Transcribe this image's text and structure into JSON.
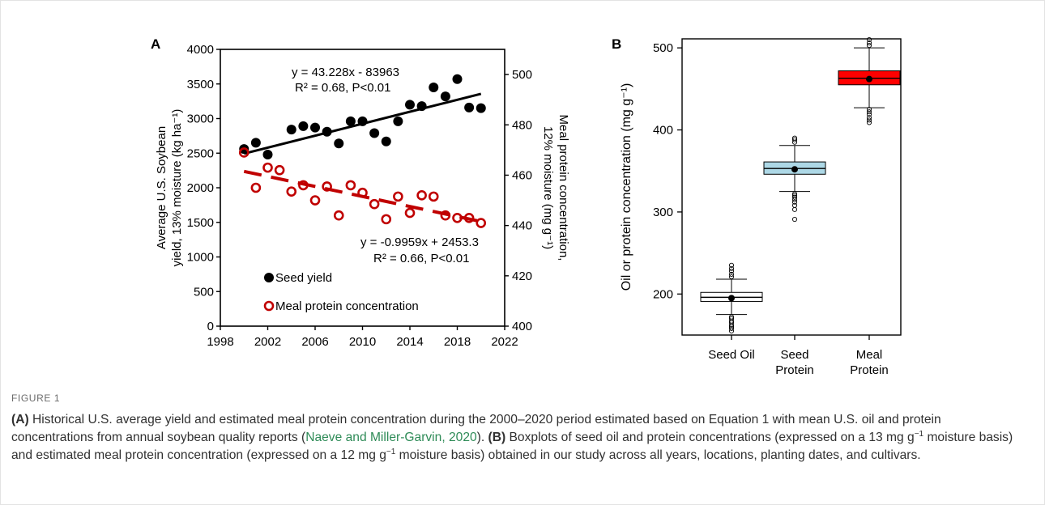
{
  "chart_data": [
    {
      "type": "scatter",
      "panel_label": "A",
      "x": [
        2000,
        2001,
        2002,
        2003,
        2004,
        2005,
        2006,
        2007,
        2008,
        2009,
        2010,
        2011,
        2012,
        2013,
        2014,
        2015,
        2016,
        2017,
        2018,
        2019,
        2020
      ],
      "xlim": [
        1998,
        2022
      ],
      "xticks": [
        "1998",
        "2002",
        "2006",
        "2010",
        "2014",
        "2018",
        "2022"
      ],
      "ylim_left": [
        0,
        4000
      ],
      "yticks_left": [
        "0",
        "500",
        "1000",
        "1500",
        "2000",
        "2500",
        "3000",
        "3500",
        "4000"
      ],
      "ylim_right": [
        400,
        510
      ],
      "yticks_right": [
        "400",
        "420",
        "440",
        "460",
        "480",
        "500"
      ],
      "ylabel_left": [
        "Average U.S. Soybean",
        "yield, 13% moisture (kg ha⁻¹)"
      ],
      "ylabel_right": [
        "Meal protein concentration,",
        "12% moisture (mg g⁻¹)"
      ],
      "series": [
        {
          "name": "Seed yield",
          "axis": "left",
          "marker": "filled-circle",
          "color": "#000000",
          "values": [
            2560,
            2650,
            2480,
            null,
            2840,
            2890,
            2870,
            2810,
            2640,
            2960,
            2960,
            2790,
            2670,
            2960,
            3200,
            3180,
            3450,
            3320,
            3570,
            3160,
            3150
          ],
          "trend": {
            "slope": 43.228,
            "intercept": -83963
          },
          "equation": "y = 43.228x - 83963",
          "stats": "R² = 0.68, P<0.01"
        },
        {
          "name": "Meal protein concentration",
          "axis": "right",
          "marker": "open-circle",
          "color": "#c00000",
          "values": [
            469,
            455,
            463,
            462,
            453.5,
            456,
            450,
            455.5,
            444,
            456,
            453,
            448.5,
            442.5,
            451.5,
            445,
            452,
            451.5,
            444,
            443,
            443,
            441
          ],
          "trend": {
            "slope": -0.9959,
            "intercept": 2453.3
          },
          "equation": "y = -0.9959x + 2453.3",
          "stats": "R² = 0.66, P<0.01"
        }
      ]
    },
    {
      "type": "box",
      "panel_label": "B",
      "ylabel": "Oil or protein concentration (mg g⁻¹)",
      "ylim": [
        150,
        510
      ],
      "yticks": [
        "200",
        "300",
        "400",
        "500"
      ],
      "categories": [
        [
          "Seed Oil"
        ],
        [
          "Seed",
          "Protein"
        ],
        [
          "Meal",
          "Protein"
        ]
      ],
      "boxes": [
        {
          "color": "#ffffff",
          "whisker_low": 175,
          "q1": 191,
          "median": 196,
          "q3": 202,
          "whisker_high": 218,
          "mean": 195,
          "outliers": [
            155,
            158,
            160,
            162,
            165,
            167,
            170,
            172,
            221,
            224,
            228,
            231,
            235
          ]
        },
        {
          "color": "#add8e6",
          "whisker_low": 325,
          "q1": 346,
          "median": 353,
          "q3": 361,
          "whisker_high": 381,
          "mean": 352,
          "outliers": [
            291,
            303,
            308,
            312,
            315,
            318,
            320,
            322,
            385,
            388,
            390
          ]
        },
        {
          "color": "#ff0000",
          "whisker_low": 427,
          "q1": 455,
          "median": 463,
          "q3": 472,
          "whisker_high": 500,
          "mean": 462,
          "outliers": [
            409,
            412,
            415,
            419,
            422,
            425,
            503,
            506,
            510
          ]
        }
      ]
    }
  ],
  "figure": {
    "label": "FIGURE 1",
    "caption": {
      "a_tag": "(A)",
      "a_text": " Historical U.S. average yield and estimated meal protein concentration during the 2000–2020 period estimated based on Equation 1 with mean U.S. oil and protein concentrations from annual soybean quality reports (",
      "a_link": "Naeve and Miller-Garvin, 2020",
      "a_end": "). ",
      "b_tag": "(B)",
      "b_text1": " Boxplots of seed oil and protein concentrations (expressed on a 13 mg g",
      "b_sup1": "−1",
      "b_text2": " moisture basis) and estimated meal protein concentration (expressed on a 12 mg g",
      "b_sup2": "−1",
      "b_text3": " moisture basis) obtained in our study across all years, locations, planting dates, and cultivars."
    }
  }
}
